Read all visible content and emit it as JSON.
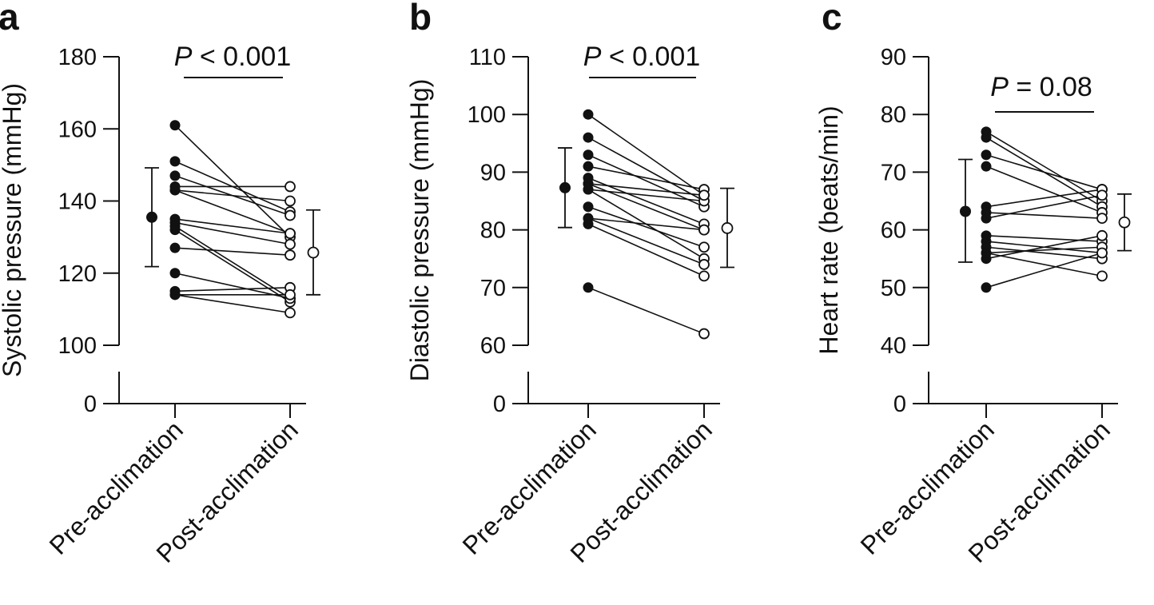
{
  "chart_data": [
    {
      "type": "scatter",
      "panel": "a",
      "ylabel": "Systolic pressure (mmHg)",
      "categories": [
        "Pre-acclimation",
        "Post-acclimation"
      ],
      "yticks": [
        0,
        100,
        120,
        140,
        160,
        180
      ],
      "ylim_broken": [
        0,
        [
          100,
          180
        ]
      ],
      "p_label": "P",
      "p_text": " < 0.001",
      "pairs": [
        [
          161,
          130
        ],
        [
          151,
          137
        ],
        [
          147,
          136
        ],
        [
          144,
          144
        ],
        [
          143,
          140
        ],
        [
          135,
          131
        ],
        [
          134,
          128
        ],
        [
          133,
          113
        ],
        [
          132,
          112
        ],
        [
          127,
          125
        ],
        [
          120,
          113
        ],
        [
          115,
          116
        ],
        [
          114,
          109
        ],
        [
          114,
          114
        ],
        [
          143,
          131
        ]
      ],
      "summary": {
        "pre": {
          "mean": 135.5,
          "lower": 121.8,
          "upper": 149.2
        },
        "post": {
          "mean": 125.7,
          "lower": 114.0,
          "upper": 137.5
        }
      }
    },
    {
      "type": "scatter",
      "panel": "b",
      "ylabel": "Diastolic pressure (mmHg)",
      "categories": [
        "Pre-acclimation",
        "Post-acclimation"
      ],
      "yticks": [
        0,
        60,
        70,
        80,
        90,
        100,
        110
      ],
      "ylim_broken": [
        0,
        [
          60,
          110
        ]
      ],
      "p_label": "P",
      "p_text": " < 0.001",
      "pairs": [
        [
          100,
          86
        ],
        [
          96,
          85
        ],
        [
          93,
          84
        ],
        [
          91,
          87
        ],
        [
          89,
          81
        ],
        [
          88,
          80
        ],
        [
          87,
          85
        ],
        [
          87,
          75
        ],
        [
          84,
          77
        ],
        [
          82,
          74
        ],
        [
          81,
          72
        ],
        [
          70,
          62
        ],
        [
          88,
          86
        ],
        [
          82,
          80
        ]
      ],
      "summary": {
        "pre": {
          "mean": 87.3,
          "lower": 80.4,
          "upper": 94.2
        },
        "post": {
          "mean": 80.3,
          "lower": 73.5,
          "upper": 87.2
        }
      }
    },
    {
      "type": "scatter",
      "panel": "c",
      "ylabel": "Heart rate (beats/min)",
      "categories": [
        "Pre-acclimation",
        "Post-acclimation"
      ],
      "yticks": [
        0,
        40,
        50,
        60,
        70,
        80,
        90
      ],
      "ylim_broken": [
        0,
        [
          40,
          90
        ]
      ],
      "p_label": "P",
      "p_text": " = 0.08",
      "pairs": [
        [
          77,
          65
        ],
        [
          76,
          64
        ],
        [
          73,
          67
        ],
        [
          71,
          63
        ],
        [
          64,
          67
        ],
        [
          63,
          62
        ],
        [
          62,
          66
        ],
        [
          59,
          58
        ],
        [
          58,
          56
        ],
        [
          57,
          55
        ],
        [
          56,
          57
        ],
        [
          55,
          59
        ],
        [
          50,
          56
        ],
        [
          56,
          52
        ]
      ],
      "summary": {
        "pre": {
          "mean": 63.2,
          "lower": 54.4,
          "upper": 72.2
        },
        "post": {
          "mean": 61.3,
          "lower": 56.4,
          "upper": 66.2
        }
      }
    }
  ]
}
